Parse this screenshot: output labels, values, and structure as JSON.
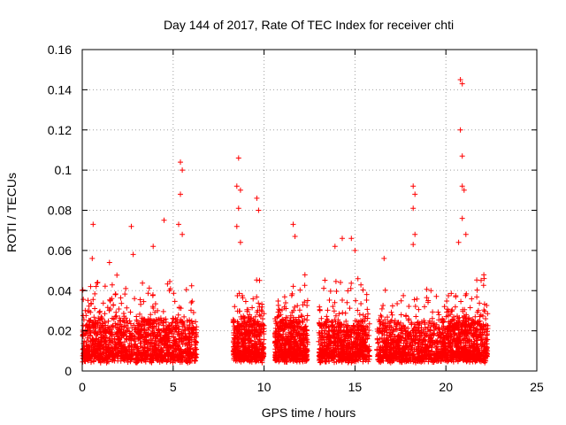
{
  "chart_data": {
    "type": "scatter",
    "title": "Day 144 of 2017, Rate Of TEC Index for receiver chti",
    "xlabel": "GPS time / hours",
    "ylabel": "ROTI / TECUs",
    "xlim": [
      0,
      25
    ],
    "ylim": [
      0,
      0.16
    ],
    "xticks": [
      "0",
      "5",
      "10",
      "15",
      "20",
      "25"
    ],
    "yticks": [
      "0",
      "0.02",
      "0.04",
      "0.06",
      "0.08",
      "0.1",
      "0.12",
      "0.14",
      "0.16"
    ],
    "grid": true,
    "marker": "+",
    "color": "#ff0000",
    "segments": [
      {
        "x": [
          0.0,
          6.3
        ],
        "base": 0.012,
        "spread": 0.02,
        "count": 1400
      },
      {
        "x": [
          8.3,
          10.0
        ],
        "base": 0.014,
        "spread": 0.02,
        "count": 500
      },
      {
        "x": [
          10.6,
          12.4
        ],
        "base": 0.016,
        "spread": 0.02,
        "count": 560
      },
      {
        "x": [
          13.0,
          15.8
        ],
        "base": 0.013,
        "spread": 0.018,
        "count": 700
      },
      {
        "x": [
          16.2,
          19.8
        ],
        "base": 0.012,
        "spread": 0.018,
        "count": 800
      },
      {
        "x": [
          19.8,
          22.3
        ],
        "base": 0.013,
        "spread": 0.02,
        "count": 700
      }
    ],
    "peaks": [
      {
        "x": 0.6,
        "y": 0.073
      },
      {
        "x": 0.55,
        "y": 0.056
      },
      {
        "x": 1.5,
        "y": 0.054
      },
      {
        "x": 2.7,
        "y": 0.072
      },
      {
        "x": 2.8,
        "y": 0.058
      },
      {
        "x": 3.9,
        "y": 0.062
      },
      {
        "x": 4.5,
        "y": 0.075
      },
      {
        "x": 5.4,
        "y": 0.104
      },
      {
        "x": 5.5,
        "y": 0.1
      },
      {
        "x": 5.4,
        "y": 0.088
      },
      {
        "x": 5.3,
        "y": 0.073
      },
      {
        "x": 5.5,
        "y": 0.068
      },
      {
        "x": 8.6,
        "y": 0.106
      },
      {
        "x": 8.5,
        "y": 0.092
      },
      {
        "x": 8.7,
        "y": 0.09
      },
      {
        "x": 8.6,
        "y": 0.081
      },
      {
        "x": 8.5,
        "y": 0.072
      },
      {
        "x": 9.6,
        "y": 0.086
      },
      {
        "x": 9.7,
        "y": 0.08
      },
      {
        "x": 8.7,
        "y": 0.064
      },
      {
        "x": 11.6,
        "y": 0.073
      },
      {
        "x": 11.7,
        "y": 0.067
      },
      {
        "x": 14.3,
        "y": 0.066
      },
      {
        "x": 14.8,
        "y": 0.066
      },
      {
        "x": 15.0,
        "y": 0.06
      },
      {
        "x": 13.9,
        "y": 0.062
      },
      {
        "x": 16.6,
        "y": 0.056
      },
      {
        "x": 18.2,
        "y": 0.092
      },
      {
        "x": 18.3,
        "y": 0.088
      },
      {
        "x": 18.2,
        "y": 0.081
      },
      {
        "x": 18.3,
        "y": 0.068
      },
      {
        "x": 18.2,
        "y": 0.063
      },
      {
        "x": 20.8,
        "y": 0.145
      },
      {
        "x": 20.9,
        "y": 0.143
      },
      {
        "x": 20.8,
        "y": 0.12
      },
      {
        "x": 20.9,
        "y": 0.107
      },
      {
        "x": 20.9,
        "y": 0.092
      },
      {
        "x": 21.0,
        "y": 0.09
      },
      {
        "x": 20.9,
        "y": 0.076
      },
      {
        "x": 21.1,
        "y": 0.068
      },
      {
        "x": 20.7,
        "y": 0.064
      },
      {
        "x": 22.1,
        "y": 0.046
      }
    ]
  }
}
